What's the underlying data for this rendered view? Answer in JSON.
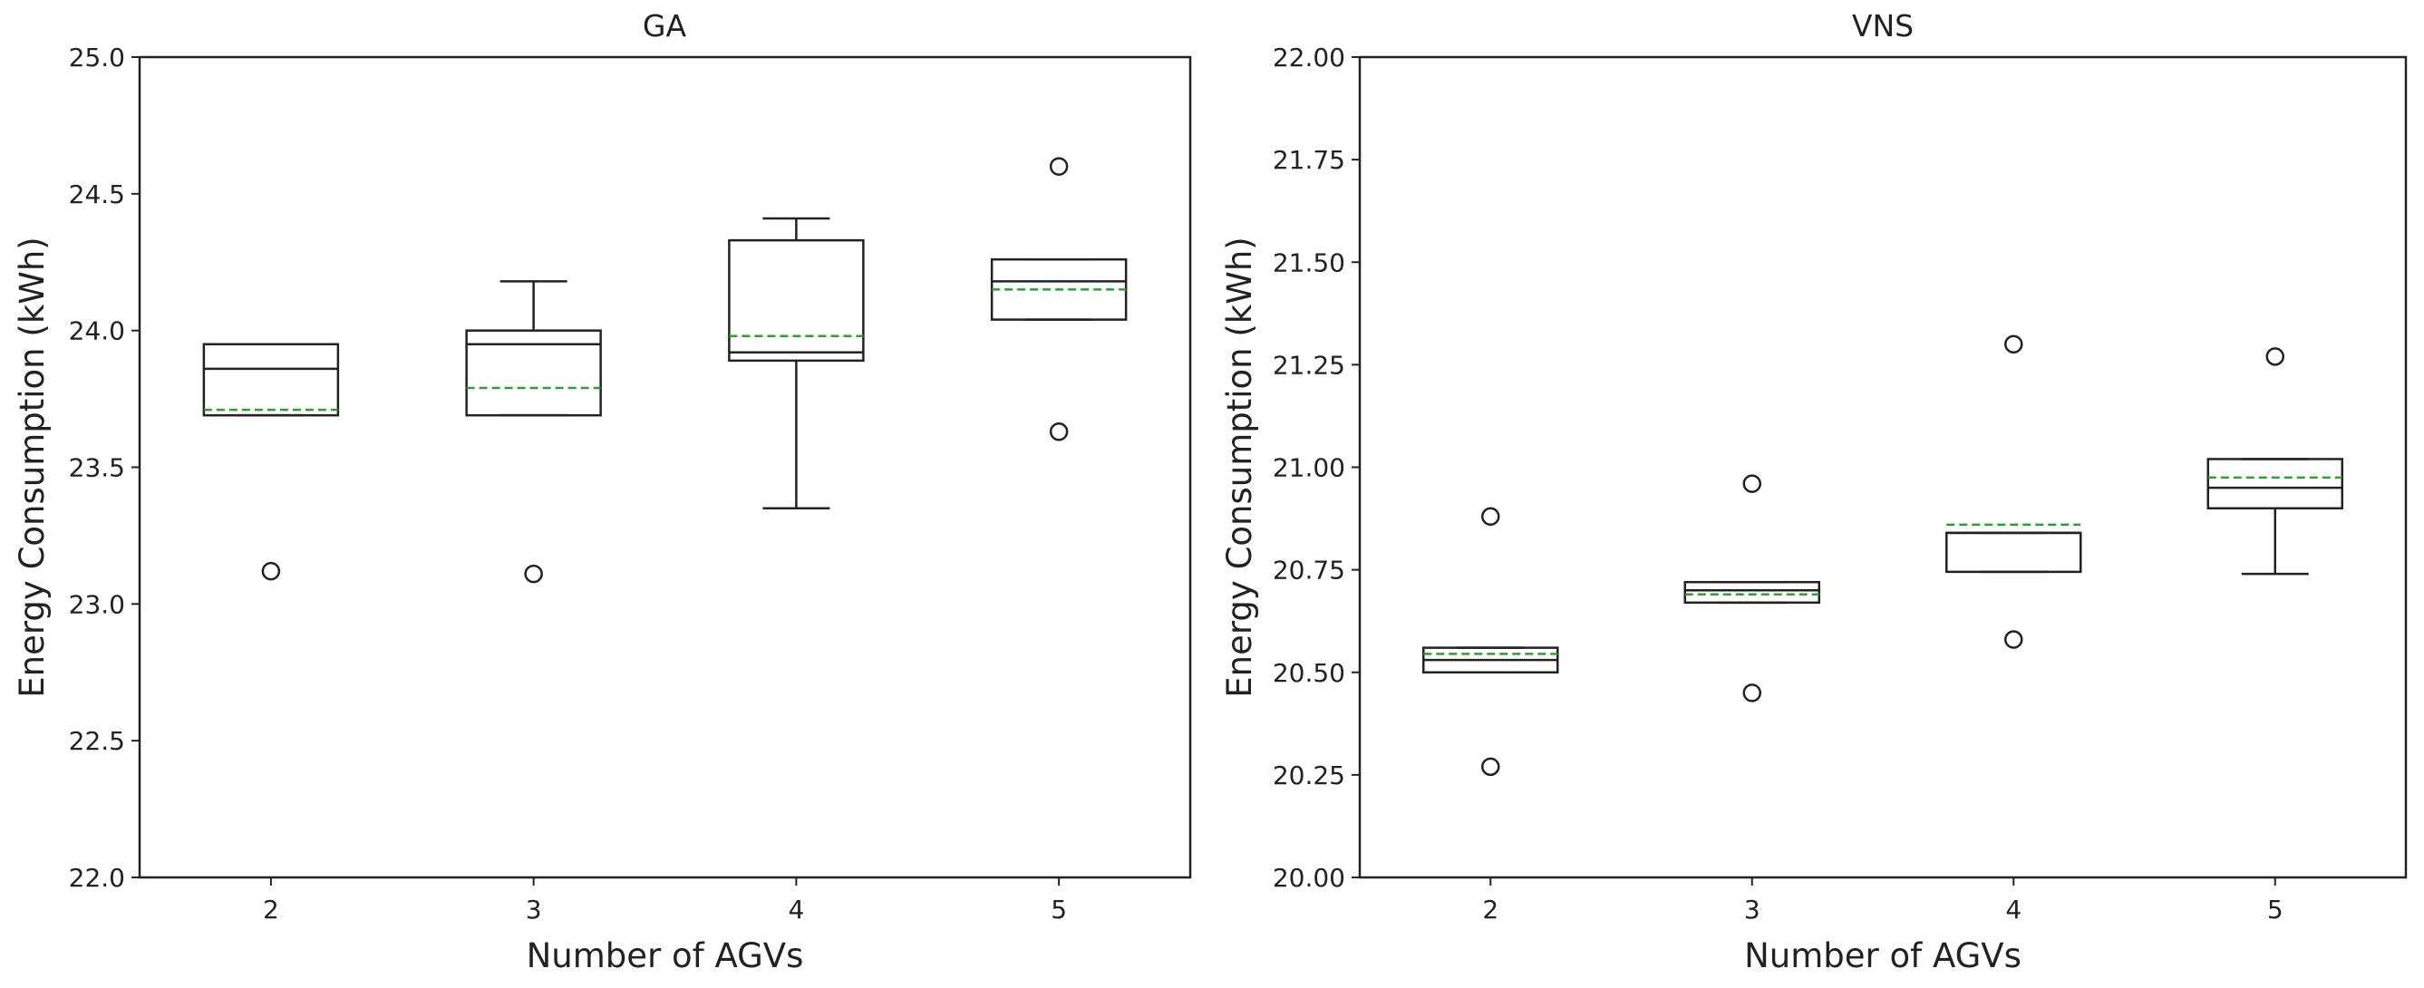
{
  "chart_data": [
    {
      "type": "box",
      "title": "GA",
      "xlabel": "Number of AGVs",
      "ylabel": "Energy Consumption (kWh)",
      "ylim": [
        22.0,
        25.0
      ],
      "yticks": [
        "22.0",
        "22.5",
        "23.0",
        "23.5",
        "24.0",
        "24.5",
        "25.0"
      ],
      "categories": [
        "2",
        "3",
        "4",
        "5"
      ],
      "grid": false,
      "mean_line_color": "#2ca02c",
      "boxes": [
        {
          "category": "2",
          "whisker_low": 23.69,
          "q1": 23.69,
          "median": 23.86,
          "q3": 23.95,
          "whisker_high": 23.95,
          "mean": 23.71,
          "outliers": [
            23.12
          ]
        },
        {
          "category": "3",
          "whisker_low": 23.69,
          "q1": 23.69,
          "median": 23.95,
          "q3": 24.0,
          "whisker_high": 24.18,
          "mean": 23.79,
          "outliers": [
            23.11
          ]
        },
        {
          "category": "4",
          "whisker_low": 23.35,
          "q1": 23.89,
          "median": 23.92,
          "q3": 24.33,
          "whisker_high": 24.41,
          "mean": 23.98,
          "outliers": []
        },
        {
          "category": "5",
          "whisker_low": 24.04,
          "q1": 24.04,
          "median": 24.18,
          "q3": 24.26,
          "whisker_high": 24.26,
          "mean": 24.15,
          "outliers": [
            24.6,
            23.63
          ]
        }
      ]
    },
    {
      "type": "box",
      "title": "VNS",
      "xlabel": "Number of AGVs",
      "ylabel": "Energy Consumption (kWh)",
      "ylim": [
        20.0,
        22.0
      ],
      "yticks": [
        "20.00",
        "20.25",
        "20.50",
        "20.75",
        "21.00",
        "21.25",
        "21.50",
        "21.75",
        "22.00"
      ],
      "categories": [
        "2",
        "3",
        "4",
        "5"
      ],
      "grid": false,
      "mean_line_color": "#2ca02c",
      "boxes": [
        {
          "category": "2",
          "whisker_low": 20.5,
          "q1": 20.5,
          "median": 20.53,
          "q3": 20.56,
          "whisker_high": 20.56,
          "mean": 20.545,
          "outliers": [
            20.88,
            20.27
          ]
        },
        {
          "category": "3",
          "whisker_low": 20.67,
          "q1": 20.67,
          "median": 20.7,
          "q3": 20.72,
          "whisker_high": 20.72,
          "mean": 20.69,
          "outliers": [
            20.96,
            20.45
          ]
        },
        {
          "category": "4",
          "whisker_low": 20.745,
          "q1": 20.745,
          "median": 20.84,
          "q3": 20.84,
          "whisker_high": 20.84,
          "mean": 20.86,
          "outliers": [
            21.3,
            20.58
          ]
        },
        {
          "category": "5",
          "whisker_low": 20.74,
          "q1": 20.9,
          "median": 20.95,
          "q3": 21.02,
          "whisker_high": 21.02,
          "mean": 20.975,
          "outliers": [
            21.27
          ]
        }
      ]
    }
  ]
}
